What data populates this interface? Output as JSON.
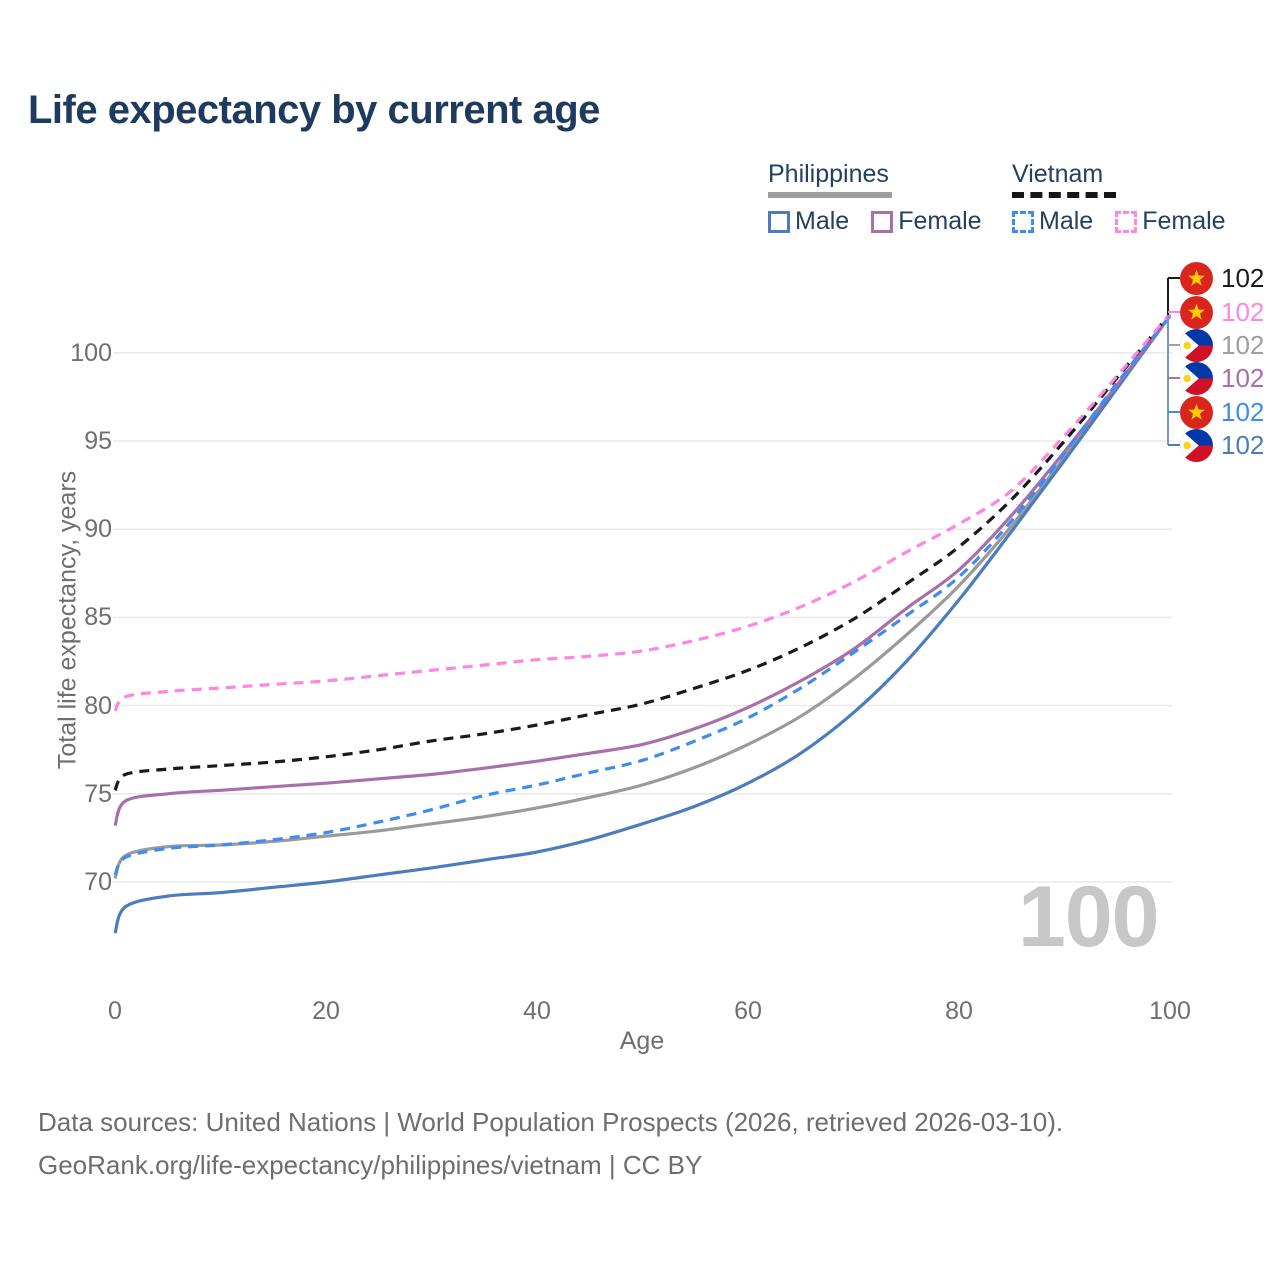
{
  "title": "Life expectancy by current age",
  "legend": {
    "groups": [
      {
        "country": "Philippines",
        "line_style": "solid",
        "underline_color": "#9e9e9e",
        "items": [
          {
            "label": "Male",
            "color": "#4b7dbd",
            "dashed": false
          },
          {
            "label": "Female",
            "color": "#a96fad",
            "dashed": false
          }
        ]
      },
      {
        "country": "Vietnam",
        "line_style": "dashed",
        "underline_color": "#161616",
        "items": [
          {
            "label": "Male",
            "color": "#3f8cf0",
            "dashed": true
          },
          {
            "label": "Female",
            "color": "#fc86e1",
            "dashed": true
          }
        ]
      }
    ]
  },
  "age_indicator": "100",
  "end_labels": [
    {
      "flag": "vietnam",
      "value": "102",
      "color": "#1a1a1a",
      "series": "Vietnam Both"
    },
    {
      "flag": "vietnam",
      "value": "102",
      "color": "#fc86e1",
      "series": "Vietnam Female"
    },
    {
      "flag": "philippines",
      "value": "102",
      "color": "#9e9e9e",
      "series": "Philippines Both"
    },
    {
      "flag": "philippines",
      "value": "102",
      "color": "#a96fad",
      "series": "Philippines Female"
    },
    {
      "flag": "vietnam",
      "value": "102",
      "color": "#3f8cf0",
      "series": "Vietnam Male"
    },
    {
      "flag": "philippines",
      "value": "102",
      "color": "#4b7dbd",
      "series": "Philippines Male"
    }
  ],
  "footer": {
    "line1": "Data sources: United Nations | World Population Prospects (2026, retrieved 2026-03-10).",
    "line2": "GeoRank.org/life-expectancy/philippines/vietnam | CC BY"
  },
  "chart_data": {
    "type": "line",
    "title": "Life expectancy by current age",
    "xlabel": "Age",
    "ylabel": "Total life expectancy, years",
    "xlim": [
      0,
      100
    ],
    "ylim": [
      66.5,
      102.5
    ],
    "xticks": [
      0,
      20,
      40,
      60,
      80,
      100
    ],
    "yticks": [
      70,
      75,
      80,
      85,
      90,
      95,
      100
    ],
    "grid": "horizontal",
    "gridline_color": "#eaeaea",
    "x": [
      0,
      1,
      5,
      10,
      15,
      20,
      25,
      30,
      35,
      40,
      45,
      50,
      55,
      60,
      65,
      70,
      75,
      80,
      85,
      90,
      95,
      100
    ],
    "series": [
      {
        "name": "Philippines Both",
        "color": "#9a9a9a",
        "dash": "solid",
        "values": [
          70.2,
          71.5,
          72.0,
          72.1,
          72.3,
          72.6,
          72.9,
          73.3,
          73.7,
          74.2,
          74.8,
          75.5,
          76.5,
          77.8,
          79.4,
          81.5,
          84.0,
          86.8,
          90.2,
          94.1,
          98.1,
          102.1
        ]
      },
      {
        "name": "Philippines Male",
        "color": "#4b7dbd",
        "dash": "solid",
        "values": [
          67.1,
          68.6,
          69.2,
          69.4,
          69.7,
          70.0,
          70.4,
          70.8,
          71.25,
          71.7,
          72.4,
          73.3,
          74.3,
          75.6,
          77.3,
          79.6,
          82.5,
          86.0,
          89.9,
          93.9,
          98.0,
          102.1
        ]
      },
      {
        "name": "Philippines Female",
        "color": "#a96fad",
        "dash": "solid",
        "values": [
          73.2,
          74.6,
          75.0,
          75.2,
          75.4,
          75.6,
          75.85,
          76.1,
          76.45,
          76.85,
          77.3,
          77.8,
          78.7,
          79.9,
          81.4,
          83.2,
          85.5,
          87.7,
          90.8,
          94.4,
          98.2,
          102.1
        ]
      },
      {
        "name": "Vietnam Both",
        "color": "#1a1a1a",
        "dash": "dashed",
        "values": [
          75.2,
          76.1,
          76.4,
          76.6,
          76.8,
          77.1,
          77.5,
          78.0,
          78.4,
          78.9,
          79.5,
          80.1,
          81.0,
          82.0,
          83.3,
          84.9,
          86.9,
          89.0,
          91.7,
          95.0,
          98.6,
          102.2
        ]
      },
      {
        "name": "Vietnam Male",
        "color": "#3f8cf0",
        "dash": "dashed",
        "values": [
          70.4,
          71.4,
          71.9,
          72.1,
          72.4,
          72.8,
          73.4,
          74.1,
          74.9,
          75.5,
          76.2,
          76.9,
          78.0,
          79.3,
          81.0,
          83.0,
          85.1,
          87.3,
          90.5,
          94.3,
          98.3,
          102.1
        ]
      },
      {
        "name": "Vietnam Female",
        "color": "#fc86e1",
        "dash": "dashed",
        "values": [
          79.7,
          80.5,
          80.8,
          81.0,
          81.2,
          81.4,
          81.7,
          82.0,
          82.3,
          82.6,
          82.8,
          83.1,
          83.7,
          84.5,
          85.6,
          87.0,
          88.7,
          90.3,
          92.2,
          95.3,
          98.7,
          102.2
        ]
      }
    ]
  }
}
